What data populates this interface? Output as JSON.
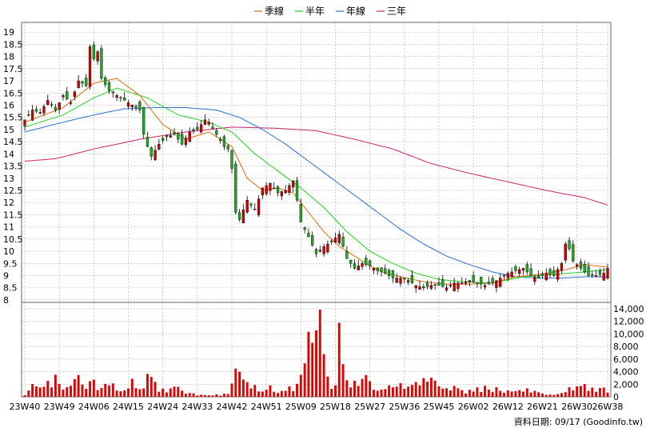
{
  "chart_data": {
    "type": "candlestick",
    "legend": [
      {
        "name": "季線",
        "color": "#e06a10"
      },
      {
        "name": "半年",
        "color": "#22cc22"
      },
      {
        "name": "年線",
        "color": "#2a6fd0"
      },
      {
        "name": "三年",
        "color": "#cc2266"
      }
    ],
    "colors": {
      "up_candle": "#cc0000",
      "down_candle": "#22aa22",
      "volume_bar": "#dd0000",
      "grid": "#b0b0b0"
    },
    "price_axis": {
      "ylim": [
        7.9,
        19.4
      ],
      "ticks": [
        "19",
        "18.5",
        "18",
        "17.5",
        "17",
        "16.5",
        "16",
        "15.5",
        "15",
        "14.5",
        "14",
        "13.5",
        "13",
        "12.5",
        "12",
        "11.5",
        "11",
        "10.5",
        "10",
        "9.5",
        "9",
        "8.5",
        "8"
      ],
      "tick_values": [
        19,
        18.5,
        18,
        17.5,
        17,
        16.5,
        16,
        15.5,
        15,
        14.5,
        14,
        13.5,
        13,
        12.5,
        12,
        11.5,
        11,
        10.5,
        10,
        9.5,
        9,
        8.5,
        8
      ]
    },
    "volume_axis": {
      "ylim": [
        0,
        15000
      ],
      "ticks": [
        "14,000",
        "12,000",
        "10,000",
        "8,000",
        "6,000",
        "4,000",
        "2,000",
        "0"
      ],
      "tick_values": [
        14000,
        12000,
        10000,
        8000,
        6000,
        4000,
        2000,
        0
      ]
    },
    "x_ticks": [
      "23W40",
      "23W49",
      "24W06",
      "24W15",
      "24W24",
      "24W33",
      "24W42",
      "24W51",
      "25W09",
      "25W18",
      "25W27",
      "25W36",
      "25W45",
      "26W02",
      "26W12",
      "26W21",
      "26W30",
      "26W38"
    ],
    "x_tick_weeks": [
      0,
      9,
      18,
      27,
      36,
      45,
      54,
      63,
      72,
      81,
      90,
      99,
      108,
      117,
      126,
      135,
      144,
      152
    ],
    "weeks": 153,
    "close_anchors": [
      [
        0,
        15.4
      ],
      [
        2,
        15.8
      ],
      [
        4,
        15.7
      ],
      [
        6,
        16.2
      ],
      [
        8,
        15.8
      ],
      [
        10,
        16.4
      ],
      [
        12,
        16.1
      ],
      [
        14,
        17.0
      ],
      [
        16,
        16.8
      ],
      [
        17,
        18.4
      ],
      [
        18,
        17.9
      ],
      [
        19,
        18.2
      ],
      [
        20,
        17.1
      ],
      [
        22,
        16.6
      ],
      [
        24,
        16.4
      ],
      [
        26,
        16.2
      ],
      [
        28,
        16.0
      ],
      [
        30,
        15.8
      ],
      [
        31,
        14.8
      ],
      [
        32,
        14.3
      ],
      [
        33,
        13.9
      ],
      [
        35,
        14.4
      ],
      [
        37,
        14.7
      ],
      [
        39,
        14.8
      ],
      [
        41,
        14.4
      ],
      [
        43,
        14.9
      ],
      [
        45,
        15.0
      ],
      [
        47,
        15.4
      ],
      [
        48,
        15.3
      ],
      [
        50,
        14.8
      ],
      [
        52,
        14.3
      ],
      [
        53,
        14.2
      ],
      [
        54,
        13.4
      ],
      [
        55,
        11.6
      ],
      [
        56,
        11.3
      ],
      [
        58,
        12.1
      ],
      [
        60,
        11.7
      ],
      [
        62,
        12.6
      ],
      [
        64,
        12.8
      ],
      [
        66,
        12.4
      ],
      [
        68,
        12.5
      ],
      [
        70,
        12.9
      ],
      [
        71,
        12.1
      ],
      [
        72,
        11.2
      ],
      [
        74,
        10.6
      ],
      [
        76,
        9.9
      ],
      [
        78,
        10.2
      ],
      [
        80,
        10.4
      ],
      [
        82,
        10.7
      ],
      [
        84,
        9.7
      ],
      [
        86,
        9.3
      ],
      [
        88,
        9.5
      ],
      [
        90,
        9.4
      ],
      [
        92,
        9.2
      ],
      [
        94,
        9.1
      ],
      [
        96,
        8.9
      ],
      [
        98,
        8.9
      ],
      [
        100,
        8.8
      ],
      [
        102,
        8.6
      ],
      [
        104,
        8.5
      ],
      [
        106,
        8.6
      ],
      [
        108,
        8.6
      ],
      [
        110,
        8.5
      ],
      [
        112,
        8.7
      ],
      [
        114,
        8.7
      ],
      [
        116,
        8.8
      ],
      [
        118,
        8.7
      ],
      [
        120,
        8.6
      ],
      [
        122,
        8.7
      ],
      [
        124,
        8.9
      ],
      [
        126,
        9.1
      ],
      [
        128,
        9.2
      ],
      [
        130,
        9.3
      ],
      [
        132,
        9.0
      ],
      [
        134,
        8.9
      ],
      [
        136,
        9.1
      ],
      [
        138,
        9.0
      ],
      [
        140,
        9.5
      ],
      [
        141,
        10.3
      ],
      [
        142,
        10.1
      ],
      [
        143,
        9.6
      ],
      [
        145,
        9.3
      ],
      [
        147,
        9.0
      ],
      [
        149,
        9.0
      ],
      [
        151,
        9.1
      ],
      [
        152,
        9.3
      ]
    ],
    "volume_anchors": [
      [
        0,
        400
      ],
      [
        2,
        2500
      ],
      [
        4,
        1200
      ],
      [
        6,
        2000
      ],
      [
        8,
        2800
      ],
      [
        10,
        1500
      ],
      [
        12,
        2200
      ],
      [
        14,
        3400
      ],
      [
        16,
        1800
      ],
      [
        18,
        2000
      ],
      [
        20,
        1500
      ],
      [
        22,
        2500
      ],
      [
        24,
        1600
      ],
      [
        26,
        1000
      ],
      [
        28,
        2200
      ],
      [
        30,
        1500
      ],
      [
        32,
        2800
      ],
      [
        33,
        3100
      ],
      [
        35,
        1300
      ],
      [
        37,
        900
      ],
      [
        39,
        1400
      ],
      [
        41,
        900
      ],
      [
        43,
        600
      ],
      [
        45,
        300
      ],
      [
        47,
        400
      ],
      [
        49,
        300
      ],
      [
        51,
        300
      ],
      [
        53,
        500
      ],
      [
        54,
        3200
      ],
      [
        55,
        4500
      ],
      [
        56,
        6100
      ],
      [
        58,
        2000
      ],
      [
        60,
        1600
      ],
      [
        62,
        1200
      ],
      [
        64,
        1600
      ],
      [
        66,
        900
      ],
      [
        68,
        1600
      ],
      [
        70,
        1400
      ],
      [
        72,
        4300
      ],
      [
        73,
        7400
      ],
      [
        74,
        8000
      ],
      [
        76,
        9300
      ],
      [
        77,
        12900
      ],
      [
        78,
        8200
      ],
      [
        79,
        4700
      ],
      [
        80,
        2000
      ],
      [
        81,
        2600
      ],
      [
        82,
        15300
      ],
      [
        83,
        4300
      ],
      [
        85,
        1500
      ],
      [
        87,
        2700
      ],
      [
        89,
        3500
      ],
      [
        90,
        2000
      ],
      [
        92,
        1200
      ],
      [
        94,
        1000
      ],
      [
        96,
        2000
      ],
      [
        98,
        2000
      ],
      [
        100,
        1200
      ],
      [
        102,
        2400
      ],
      [
        104,
        2200
      ],
      [
        106,
        2500
      ],
      [
        108,
        1500
      ],
      [
        110,
        1200
      ],
      [
        112,
        1700
      ],
      [
        114,
        1000
      ],
      [
        116,
        800
      ],
      [
        118,
        1200
      ],
      [
        120,
        1300
      ],
      [
        122,
        1100
      ],
      [
        124,
        1300
      ],
      [
        126,
        800
      ],
      [
        128,
        800
      ],
      [
        130,
        1200
      ],
      [
        132,
        1100
      ],
      [
        134,
        800
      ],
      [
        136,
        400
      ],
      [
        138,
        300
      ],
      [
        140,
        600
      ],
      [
        141,
        700
      ],
      [
        142,
        1200
      ],
      [
        143,
        1300
      ],
      [
        145,
        1700
      ],
      [
        147,
        1500
      ],
      [
        149,
        1100
      ],
      [
        150,
        2200
      ],
      [
        151,
        1400
      ],
      [
        152,
        900
      ]
    ],
    "ma_quarter_anchors": [
      [
        0,
        15.3
      ],
      [
        10,
        15.9
      ],
      [
        18,
        16.9
      ],
      [
        24,
        17.1
      ],
      [
        30,
        16.4
      ],
      [
        36,
        15.2
      ],
      [
        42,
        14.6
      ],
      [
        48,
        14.9
      ],
      [
        54,
        14.3
      ],
      [
        58,
        13.0
      ],
      [
        62,
        12.5
      ],
      [
        66,
        12.6
      ],
      [
        70,
        12.4
      ],
      [
        74,
        11.6
      ],
      [
        78,
        10.8
      ],
      [
        82,
        10.2
      ],
      [
        86,
        9.8
      ],
      [
        90,
        9.4
      ],
      [
        94,
        9.1
      ],
      [
        98,
        8.95
      ],
      [
        104,
        8.75
      ],
      [
        110,
        8.65
      ],
      [
        116,
        8.65
      ],
      [
        122,
        8.7
      ],
      [
        128,
        8.95
      ],
      [
        134,
        9.05
      ],
      [
        140,
        9.2
      ],
      [
        146,
        9.45
      ],
      [
        152,
        9.35
      ]
    ],
    "ma_half_anchors": [
      [
        0,
        15.1
      ],
      [
        10,
        15.6
      ],
      [
        18,
        16.3
      ],
      [
        24,
        16.7
      ],
      [
        32,
        16.3
      ],
      [
        40,
        15.6
      ],
      [
        48,
        15.3
      ],
      [
        54,
        14.9
      ],
      [
        60,
        14.0
      ],
      [
        66,
        13.3
      ],
      [
        72,
        12.6
      ],
      [
        78,
        11.8
      ],
      [
        84,
        10.8
      ],
      [
        90,
        10.0
      ],
      [
        96,
        9.5
      ],
      [
        102,
        9.1
      ],
      [
        108,
        8.85
      ],
      [
        114,
        8.75
      ],
      [
        122,
        8.7
      ],
      [
        130,
        8.95
      ],
      [
        138,
        9.05
      ],
      [
        146,
        9.15
      ],
      [
        152,
        9.25
      ]
    ],
    "ma_year_anchors": [
      [
        0,
        14.9
      ],
      [
        10,
        15.3
      ],
      [
        18,
        15.6
      ],
      [
        26,
        15.85
      ],
      [
        34,
        15.9
      ],
      [
        42,
        15.9
      ],
      [
        50,
        15.8
      ],
      [
        56,
        15.5
      ],
      [
        62,
        15.0
      ],
      [
        68,
        14.4
      ],
      [
        74,
        13.7
      ],
      [
        80,
        13.0
      ],
      [
        86,
        12.3
      ],
      [
        92,
        11.6
      ],
      [
        98,
        10.9
      ],
      [
        104,
        10.3
      ],
      [
        110,
        9.8
      ],
      [
        116,
        9.45
      ],
      [
        122,
        9.15
      ],
      [
        128,
        8.95
      ],
      [
        134,
        8.9
      ],
      [
        140,
        8.9
      ],
      [
        146,
        8.95
      ],
      [
        152,
        8.95
      ]
    ],
    "ma_3year_anchors": [
      [
        0,
        13.7
      ],
      [
        8,
        13.8
      ],
      [
        18,
        14.2
      ],
      [
        30,
        14.6
      ],
      [
        42,
        14.9
      ],
      [
        54,
        15.1
      ],
      [
        66,
        15.05
      ],
      [
        76,
        14.95
      ],
      [
        86,
        14.6
      ],
      [
        96,
        14.2
      ],
      [
        106,
        13.6
      ],
      [
        116,
        13.2
      ],
      [
        126,
        12.85
      ],
      [
        136,
        12.5
      ],
      [
        146,
        12.2
      ],
      [
        152,
        11.9
      ]
    ]
  },
  "footer": {
    "credit": "資料日期: 09/17  (Goodinfo.tw)"
  }
}
